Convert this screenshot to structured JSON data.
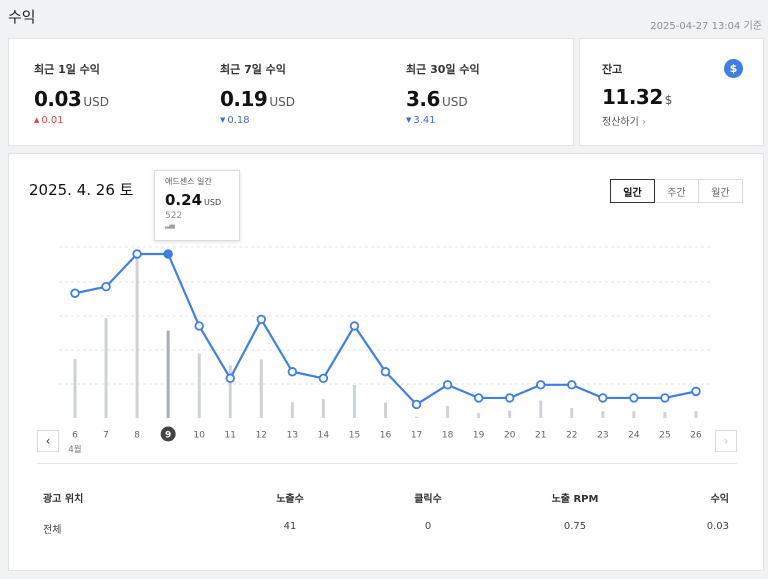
{
  "header": {
    "title": "수익",
    "timestamp": "2025-04-27 13:04 기준"
  },
  "summary": [
    {
      "label": "최근 1일 수익",
      "value": "0.03",
      "unit": "USD",
      "change": "0.01",
      "direction": "up"
    },
    {
      "label": "최근 7일 수익",
      "value": "0.19",
      "unit": "USD",
      "change": "0.18",
      "direction": "down"
    },
    {
      "label": "최근 30일 수익",
      "value": "3.6",
      "unit": "USD",
      "change": "3.41",
      "direction": "down"
    }
  ],
  "balance": {
    "label": "잔고",
    "value": "11.32",
    "unit": "$",
    "link": "정산하기",
    "icon": "dollar-icon",
    "icon_glyph": "$"
  },
  "chart_header": {
    "date": "2025. 4. 26 토"
  },
  "period": {
    "options": [
      "일간",
      "주간",
      "월간"
    ],
    "selected": "일간"
  },
  "tooltip": {
    "title": "애드센스 일간",
    "value": "0.24",
    "unit": "USD",
    "sub": "522"
  },
  "chart_data": {
    "type": "line",
    "x": [
      "6",
      "7",
      "8",
      "9",
      "10",
      "11",
      "12",
      "13",
      "14",
      "15",
      "16",
      "17",
      "18",
      "19",
      "20",
      "21",
      "22",
      "23",
      "24",
      "25",
      "26"
    ],
    "x_sublabel": "4월",
    "selected_index": 3,
    "series": [
      {
        "kind": "line",
        "values": [
          0.18,
          0.19,
          0.24,
          0.24,
          0.13,
          0.05,
          0.14,
          0.06,
          0.05,
          0.13,
          0.06,
          0.01,
          0.04,
          0.02,
          0.02,
          0.04,
          0.04,
          0.02,
          0.02,
          0.02,
          0.03
        ]
      },
      {
        "kind": "bar",
        "values": [
          352,
          596,
          955,
          522,
          386,
          314,
          349,
          94,
          113,
          197,
          92,
          8,
          72,
          29,
          44,
          104,
          59,
          41,
          41,
          35,
          41
        ]
      }
    ],
    "line_range": [
      0,
      0.24
    ],
    "bar_range": [
      0,
      955
    ],
    "colors": {
      "line": "#3d7fe6",
      "bar": "#cfd3d8",
      "bar_selected": "#a9aeb5",
      "selected_badge": "#444444"
    }
  },
  "table": {
    "headers": [
      "광고 위치",
      "노출수",
      "클릭수",
      "노출 RPM",
      "수익"
    ],
    "rows": [
      [
        "전체",
        "41",
        "0",
        "0.75",
        "0.03"
      ]
    ]
  },
  "nav": {
    "prev": "‹",
    "next": "›"
  }
}
